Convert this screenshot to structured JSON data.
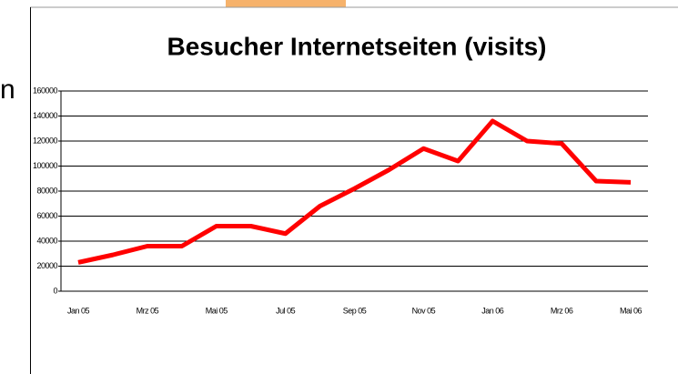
{
  "slide_text": "n",
  "chart_data": {
    "type": "line",
    "title": "Besucher Internetseiten (visits)",
    "categories": [
      "Jan 05",
      null,
      "Mrz 05",
      null,
      "Mai 05",
      null,
      "Jul 05",
      null,
      "Sep 05",
      null,
      "Nov 05",
      null,
      "Jan 06",
      null,
      "Mrz 06",
      null,
      "Mai 06"
    ],
    "values": [
      23000,
      29000,
      36000,
      36000,
      52000,
      52000,
      46000,
      68000,
      82000,
      97000,
      114000,
      104000,
      136000,
      120000,
      118000,
      88000,
      87000
    ],
    "color": "#ff0000",
    "ylim": [
      0,
      160000
    ],
    "yticks": [
      0,
      20000,
      40000,
      60000,
      80000,
      100000,
      120000,
      140000,
      160000
    ],
    "grid": true
  }
}
